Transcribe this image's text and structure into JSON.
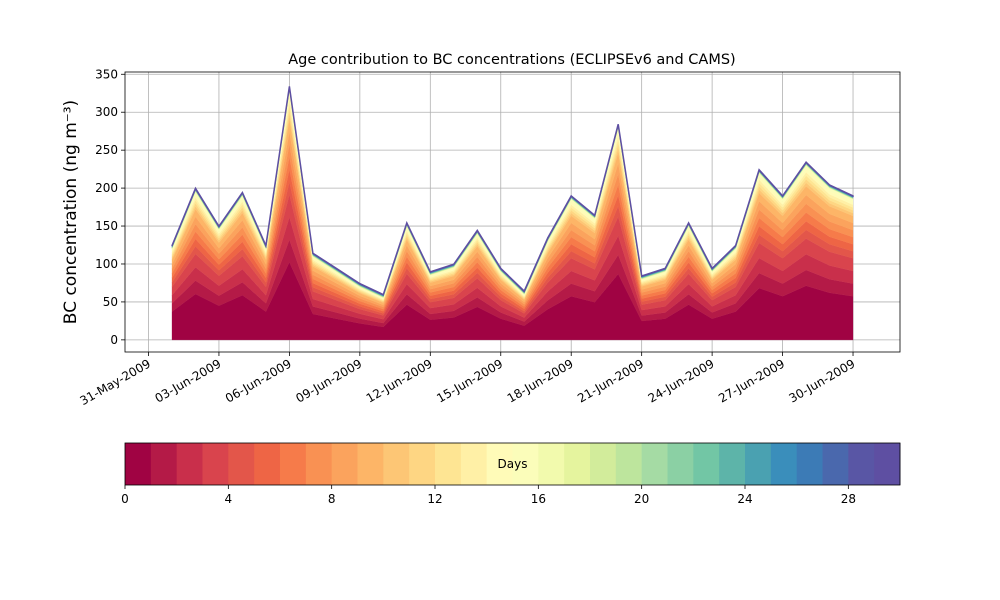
{
  "chart_data": {
    "type": "stacked_area",
    "title": "Age contribution to BC concentrations (ECLIPSEv6 and CAMS)",
    "ylabel": "BC concentration (ng m⁻³)",
    "x": [
      "2009-06-01",
      "2009-06-02",
      "2009-06-03",
      "2009-06-04",
      "2009-06-05",
      "2009-06-06",
      "2009-06-07",
      "2009-06-08",
      "2009-06-09",
      "2009-06-10",
      "2009-06-11",
      "2009-06-12",
      "2009-06-13",
      "2009-06-14",
      "2009-06-15",
      "2009-06-16",
      "2009-06-17",
      "2009-06-18",
      "2009-06-19",
      "2009-06-20",
      "2009-06-21",
      "2009-06-22",
      "2009-06-23",
      "2009-06-24",
      "2009-06-25",
      "2009-06-26",
      "2009-06-27",
      "2009-06-28",
      "2009-06-29",
      "2009-06-30"
    ],
    "xlim": [
      "2009-05-30",
      "2009-07-02"
    ],
    "xticks": [
      {
        "value": "2009-05-31",
        "label": "31-May-2009"
      },
      {
        "value": "2009-06-03",
        "label": "03-Jun-2009"
      },
      {
        "value": "2009-06-06",
        "label": "06-Jun-2009"
      },
      {
        "value": "2009-06-09",
        "label": "09-Jun-2009"
      },
      {
        "value": "2009-06-12",
        "label": "12-Jun-2009"
      },
      {
        "value": "2009-06-15",
        "label": "15-Jun-2009"
      },
      {
        "value": "2009-06-18",
        "label": "18-Jun-2009"
      },
      {
        "value": "2009-06-21",
        "label": "21-Jun-2009"
      },
      {
        "value": "2009-06-24",
        "label": "24-Jun-2009"
      },
      {
        "value": "2009-06-27",
        "label": "27-Jun-2009"
      },
      {
        "value": "2009-06-30",
        "label": "30-Jun-2009"
      }
    ],
    "ylim": [
      -16,
      353
    ],
    "yticks": [
      0,
      50,
      100,
      150,
      200,
      250,
      300,
      350
    ],
    "grid": true,
    "series": [
      {
        "color": "#a00343",
        "values": [
          37.2,
          60.5,
          45.0,
          58.9,
          37.2,
          102.3,
          34.1,
          27.9,
          21.7,
          17.1,
          46.5,
          26.4,
          29.5,
          43.4,
          27.9,
          18.6,
          40.3,
          57.4,
          49.6,
          86.8,
          24.8,
          27.9,
          46.5,
          27.9,
          37.2,
          68.2,
          57.4,
          71.3,
          62,
          57.4
        ]
      },
      {
        "color": "#b41a47",
        "values": [
          10.8,
          17.6,
          13.1,
          17.1,
          10.8,
          29.7,
          9.9,
          8.1,
          6.3,
          5.0,
          13.5,
          7.7,
          8.6,
          12.6,
          8.1,
          5.4,
          11.7,
          16.7,
          14.4,
          25.2,
          7.2,
          8.1,
          13.5,
          8.1,
          10.8,
          19.8,
          16.7,
          20.7,
          18,
          16.7
        ]
      },
      {
        "color": "#c92f4b",
        "values": [
          10.8,
          17.6,
          13.1,
          17.1,
          10.8,
          29.7,
          9.9,
          8.1,
          6.3,
          5.0,
          13.5,
          7.7,
          8.6,
          12.6,
          8.1,
          5.4,
          11.7,
          16.7,
          14.4,
          25.2,
          7.2,
          8.1,
          13.5,
          8.1,
          10.8,
          19.8,
          16.7,
          20.7,
          18,
          16.7
        ]
      },
      {
        "color": "#d9444d",
        "values": [
          10.8,
          17.6,
          13.1,
          17.1,
          10.8,
          29.7,
          9.9,
          8.1,
          6.3,
          5.0,
          13.5,
          7.7,
          8.6,
          12.6,
          8.1,
          5.4,
          11.7,
          16.7,
          14.4,
          25.2,
          7.2,
          8.1,
          13.5,
          8.1,
          10.8,
          19.8,
          16.7,
          20.7,
          18,
          16.7
        ]
      },
      {
        "color": "#e3564a",
        "values": [
          6,
          9.8,
          7.3,
          9.5,
          6,
          16.5,
          5.5,
          4.5,
          3.5,
          2.8,
          7.5,
          4.3,
          4.8,
          7,
          4.5,
          3,
          6.5,
          9.3,
          8,
          14,
          4,
          4.5,
          7.5,
          4.5,
          6,
          11,
          9.3,
          11.5,
          10,
          9.3
        ]
      },
      {
        "color": "#ee6545",
        "values": [
          6,
          9.8,
          7.3,
          9.5,
          6,
          16.5,
          5.5,
          4.5,
          3.5,
          2.8,
          7.5,
          4.3,
          4.8,
          7,
          4.5,
          3,
          6.5,
          9.3,
          8,
          14,
          4,
          4.5,
          7.5,
          4.5,
          6,
          11,
          9.3,
          11.5,
          10,
          9.3
        ]
      },
      {
        "color": "#f67b4a",
        "values": [
          6,
          9.8,
          7.3,
          9.5,
          6,
          16.5,
          5.5,
          4.5,
          3.5,
          2.8,
          7.5,
          4.3,
          4.8,
          7,
          4.5,
          3,
          6.5,
          9.3,
          8,
          14,
          4,
          4.5,
          7.5,
          4.5,
          6,
          11,
          9.3,
          11.5,
          10,
          9.3
        ]
      },
      {
        "color": "#f99153",
        "values": [
          6,
          9.8,
          7.3,
          9.5,
          6,
          16.5,
          5.5,
          4.5,
          3.5,
          2.8,
          7.5,
          4.3,
          4.8,
          7,
          4.5,
          3,
          6.5,
          9.3,
          8,
          14,
          4,
          4.5,
          7.5,
          4.5,
          6,
          11,
          9.3,
          11.5,
          10,
          9.3
        ]
      },
      {
        "color": "#fba35d",
        "values": [
          6,
          9.8,
          7.3,
          9.5,
          6,
          16.5,
          5.5,
          4.5,
          3.5,
          2.8,
          7.5,
          4.3,
          4.8,
          7,
          4.5,
          3,
          6.5,
          9.3,
          8,
          14,
          4,
          4.5,
          7.5,
          4.5,
          6,
          11,
          9.3,
          11.5,
          10,
          9.3
        ]
      },
      {
        "color": "#fdb567",
        "values": [
          6,
          9.8,
          7.3,
          9.5,
          6,
          16.5,
          5.5,
          4.5,
          3.5,
          2.8,
          7.5,
          4.3,
          4.8,
          7,
          4.5,
          3,
          6.5,
          9.3,
          8,
          14,
          4,
          4.5,
          7.5,
          4.5,
          6,
          11,
          9.3,
          11.5,
          10,
          9.3
        ]
      },
      {
        "color": "#fdc675",
        "values": [
          2.4,
          3.9,
          2.9,
          3.8,
          2.4,
          6.6,
          2.2,
          1.8,
          1.4,
          1.1,
          3,
          1.7,
          1.9,
          2.8,
          1.8,
          1.2,
          2.6,
          3.7,
          3.2,
          5.6,
          1.6,
          1.8,
          3,
          1.8,
          2.4,
          4.4,
          3.7,
          4.6,
          4,
          3.7
        ]
      },
      {
        "color": "#fed683",
        "values": [
          2.4,
          3.9,
          2.9,
          3.8,
          2.4,
          6.6,
          2.2,
          1.8,
          1.4,
          1.1,
          3,
          1.7,
          1.9,
          2.8,
          1.8,
          1.2,
          2.6,
          3.7,
          3.2,
          5.6,
          1.6,
          1.8,
          3,
          1.8,
          2.4,
          4.4,
          3.7,
          4.6,
          4,
          3.7
        ]
      },
      {
        "color": "#fee593",
        "values": [
          2.4,
          3.9,
          2.9,
          3.8,
          2.4,
          6.6,
          2.2,
          1.8,
          1.4,
          1.1,
          3,
          1.7,
          1.9,
          2.8,
          1.8,
          1.2,
          2.6,
          3.7,
          3.2,
          5.6,
          1.6,
          1.8,
          3,
          1.8,
          2.4,
          4.4,
          3.7,
          4.6,
          4,
          3.7
        ]
      },
      {
        "color": "#fff0a6",
        "values": [
          2.4,
          3.9,
          2.9,
          3.8,
          2.4,
          6.6,
          2.2,
          1.8,
          1.4,
          1.1,
          3,
          1.7,
          1.9,
          2.8,
          1.8,
          1.2,
          2.6,
          3.7,
          3.2,
          5.6,
          1.6,
          1.8,
          3,
          1.8,
          2.4,
          4.4,
          3.7,
          4.6,
          4,
          3.7
        ]
      },
      {
        "color": "#fffbb8",
        "values": [
          2.4,
          3.9,
          2.9,
          3.8,
          2.4,
          6.6,
          2.2,
          1.8,
          1.4,
          1.1,
          3,
          1.7,
          1.9,
          2.8,
          1.8,
          1.2,
          2.6,
          3.7,
          3.2,
          5.6,
          1.6,
          1.8,
          3,
          1.8,
          2.4,
          4.4,
          3.7,
          4.6,
          4,
          3.7
        ]
      },
      {
        "color": "#fbfdba",
        "values": [
          2.4,
          3.9,
          2.9,
          3.8,
          2.4,
          6.6,
          2.2,
          1.8,
          1.4,
          1.1,
          3,
          1.7,
          1.9,
          2.8,
          1.8,
          1.2,
          2.6,
          3.7,
          3.2,
          5.6,
          1.6,
          1.8,
          3,
          1.8,
          2.4,
          4.4,
          3.7,
          4.6,
          4,
          3.7
        ]
      },
      {
        "color": "#f2faad",
        "values": [
          0.3,
          0.3,
          0.3,
          0.3,
          0.3,
          0.3,
          0.3,
          0.3,
          0.3,
          0.3,
          0.3,
          0.3,
          0.3,
          0.3,
          0.3,
          0.3,
          0.3,
          0.3,
          0.3,
          0.3,
          0.3,
          0.3,
          0.3,
          0.3,
          0.3,
          0.3,
          0.3,
          0.3,
          0.3,
          0.3
        ]
      },
      {
        "color": "#e5f49e",
        "values": [
          0.3,
          0.3,
          0.3,
          0.3,
          0.3,
          0.3,
          0.3,
          0.3,
          0.3,
          0.3,
          0.3,
          0.3,
          0.3,
          0.3,
          0.3,
          0.3,
          0.3,
          0.3,
          0.3,
          0.3,
          0.3,
          0.3,
          0.3,
          0.3,
          0.3,
          0.3,
          0.3,
          0.3,
          0.3,
          0.3
        ]
      },
      {
        "color": "#d2ec9b",
        "values": [
          0.3,
          0.3,
          0.3,
          0.3,
          0.3,
          0.3,
          0.3,
          0.3,
          0.3,
          0.3,
          0.3,
          0.3,
          0.3,
          0.3,
          0.3,
          0.3,
          0.3,
          0.3,
          0.3,
          0.3,
          0.3,
          0.3,
          0.3,
          0.3,
          0.3,
          0.3,
          0.3,
          0.3,
          0.3,
          0.3
        ]
      },
      {
        "color": "#bde59d",
        "values": [
          0.3,
          0.3,
          0.3,
          0.3,
          0.3,
          0.3,
          0.3,
          0.3,
          0.3,
          0.3,
          0.3,
          0.3,
          0.3,
          0.3,
          0.3,
          0.3,
          0.3,
          0.3,
          0.3,
          0.3,
          0.3,
          0.3,
          0.3,
          0.3,
          0.3,
          0.3,
          0.3,
          0.3,
          0.3,
          0.3
        ]
      },
      {
        "color": "#a5dba4",
        "values": [
          0.3,
          0.3,
          0.3,
          0.3,
          0.3,
          0.3,
          0.3,
          0.3,
          0.3,
          0.3,
          0.3,
          0.3,
          0.3,
          0.3,
          0.3,
          0.3,
          0.3,
          0.3,
          0.3,
          0.3,
          0.3,
          0.3,
          0.3,
          0.3,
          0.3,
          0.3,
          0.3,
          0.3,
          0.3,
          0.3
        ]
      },
      {
        "color": "#8bd0a4",
        "values": [
          0.3,
          0.3,
          0.3,
          0.3,
          0.3,
          0.3,
          0.3,
          0.3,
          0.3,
          0.3,
          0.3,
          0.3,
          0.3,
          0.3,
          0.3,
          0.3,
          0.3,
          0.3,
          0.3,
          0.3,
          0.3,
          0.3,
          0.3,
          0.3,
          0.3,
          0.3,
          0.3,
          0.3,
          0.3,
          0.3
        ]
      },
      {
        "color": "#72c6a5",
        "values": [
          0.3,
          0.3,
          0.3,
          0.3,
          0.3,
          0.3,
          0.3,
          0.3,
          0.3,
          0.3,
          0.3,
          0.3,
          0.3,
          0.3,
          0.3,
          0.3,
          0.3,
          0.3,
          0.3,
          0.3,
          0.3,
          0.3,
          0.3,
          0.3,
          0.3,
          0.3,
          0.3,
          0.3,
          0.3,
          0.3
        ]
      },
      {
        "color": "#5db4a9",
        "values": [
          0.3,
          0.3,
          0.3,
          0.3,
          0.3,
          0.3,
          0.3,
          0.3,
          0.3,
          0.3,
          0.3,
          0.3,
          0.3,
          0.3,
          0.3,
          0.3,
          0.3,
          0.3,
          0.3,
          0.3,
          0.3,
          0.3,
          0.3,
          0.3,
          0.3,
          0.3,
          0.3,
          0.3,
          0.3,
          0.3
        ]
      },
      {
        "color": "#4aa1b1",
        "values": [
          0.3,
          0.3,
          0.3,
          0.3,
          0.3,
          0.3,
          0.3,
          0.3,
          0.3,
          0.3,
          0.3,
          0.3,
          0.3,
          0.3,
          0.3,
          0.3,
          0.3,
          0.3,
          0.3,
          0.3,
          0.3,
          0.3,
          0.3,
          0.3,
          0.3,
          0.3,
          0.3,
          0.3,
          0.3,
          0.3
        ]
      },
      {
        "color": "#3a8ebb",
        "values": [
          0.3,
          0.3,
          0.3,
          0.3,
          0.3,
          0.3,
          0.3,
          0.3,
          0.3,
          0.3,
          0.3,
          0.3,
          0.3,
          0.3,
          0.3,
          0.3,
          0.3,
          0.3,
          0.3,
          0.3,
          0.3,
          0.3,
          0.3,
          0.3,
          0.3,
          0.3,
          0.3,
          0.3,
          0.3,
          0.3
        ]
      },
      {
        "color": "#3c7bb6",
        "values": [
          0.3,
          0.3,
          0.3,
          0.3,
          0.3,
          0.3,
          0.3,
          0.3,
          0.3,
          0.3,
          0.3,
          0.3,
          0.3,
          0.3,
          0.3,
          0.3,
          0.3,
          0.3,
          0.3,
          0.3,
          0.3,
          0.3,
          0.3,
          0.3,
          0.3,
          0.3,
          0.3,
          0.3,
          0.3,
          0.3
        ]
      },
      {
        "color": "#4a68ad",
        "values": [
          0.3,
          0.3,
          0.3,
          0.3,
          0.3,
          0.3,
          0.3,
          0.3,
          0.3,
          0.3,
          0.3,
          0.3,
          0.3,
          0.3,
          0.3,
          0.3,
          0.3,
          0.3,
          0.3,
          0.3,
          0.3,
          0.3,
          0.3,
          0.3,
          0.3,
          0.3,
          0.3,
          0.3,
          0.3,
          0.3
        ]
      },
      {
        "color": "#5956a5",
        "values": [
          0.3,
          0.3,
          0.3,
          0.3,
          0.3,
          0.3,
          0.3,
          0.3,
          0.3,
          0.3,
          0.3,
          0.3,
          0.3,
          0.3,
          0.3,
          0.3,
          0.3,
          0.3,
          0.3,
          0.3,
          0.3,
          0.3,
          0.3,
          0.3,
          0.3,
          0.3,
          0.3,
          0.3,
          0.3,
          0.3
        ]
      },
      {
        "color": "#5e4fa2",
        "values": [
          0.3,
          0.3,
          0.3,
          0.3,
          0.3,
          0.3,
          0.3,
          0.3,
          0.3,
          0.3,
          0.3,
          0.3,
          0.3,
          0.3,
          0.3,
          0.3,
          0.3,
          0.3,
          0.3,
          0.3,
          0.3,
          0.3,
          0.3,
          0.3,
          0.3,
          0.3,
          0.3,
          0.3,
          0.3,
          0.3
        ]
      }
    ],
    "colorbar": {
      "label": "Days",
      "lim": [
        0,
        30
      ],
      "ticks": [
        0,
        4,
        8,
        12,
        16,
        20,
        24,
        28
      ]
    }
  }
}
